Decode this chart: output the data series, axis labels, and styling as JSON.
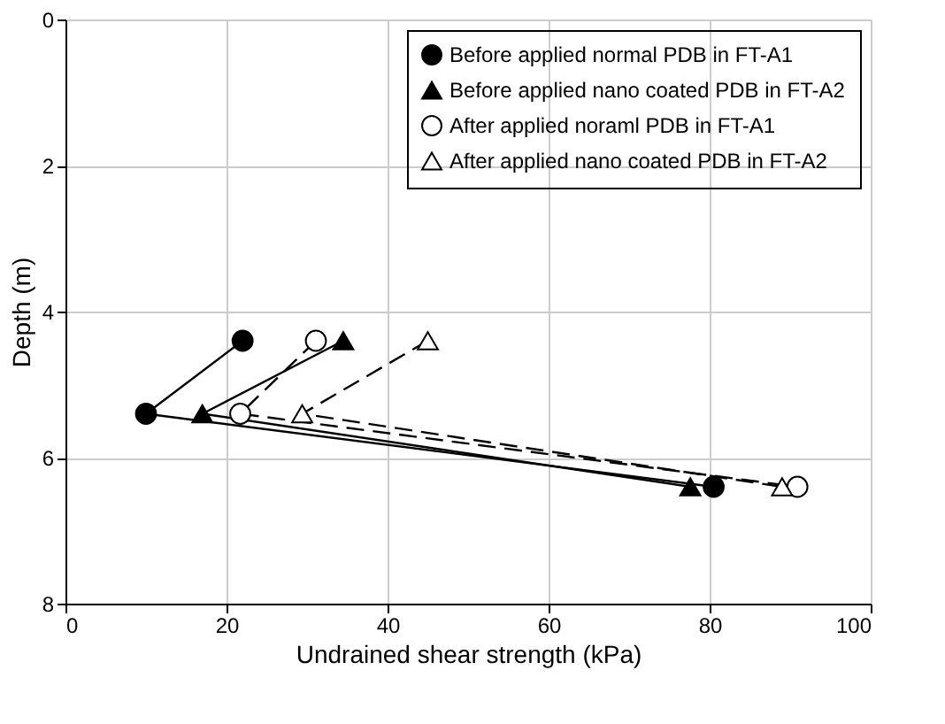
{
  "chart_data": {
    "type": "line",
    "xlabel": "Undrained shear strength (kPa)",
    "ylabel": "Depth (m)",
    "xlim": [
      0,
      100
    ],
    "xticks": [
      0,
      20,
      40,
      60,
      80,
      100
    ],
    "ylim": [
      8,
      0
    ],
    "yticks": [
      0,
      2,
      4,
      6,
      8
    ],
    "grid": true,
    "legend": "top right",
    "series": [
      {
        "name": "Before applied normal PDB in FT-A1",
        "color": "#000000",
        "marker": "circle",
        "line_style": "solid",
        "x": [
          22,
          10,
          80.5
        ],
        "values": [
          4.4,
          5.4,
          6.4
        ]
      },
      {
        "name": "Before applied nano coated PDB in FT-A2",
        "color": "#000000",
        "marker": "triangle",
        "line_style": "solid",
        "x": [
          34.5,
          17,
          77.6
        ],
        "values": [
          4.4,
          5.4,
          6.4
        ]
      },
      {
        "name": "After applied noraml PDB in FT-A1",
        "color": "#000000",
        "marker": "circle",
        "line_style": "dashed",
        "x": [
          31.1,
          21.7,
          90.9
        ],
        "values": [
          4.4,
          5.4,
          6.4
        ]
      },
      {
        "name": "After applied nano coated PDB in FT-A2",
        "color": "#000000",
        "marker": "triangle",
        "line_style": "dashed",
        "x": [
          45,
          29.4,
          89
        ],
        "values": [
          4.4,
          5.4,
          6.4
        ]
      }
    ]
  }
}
